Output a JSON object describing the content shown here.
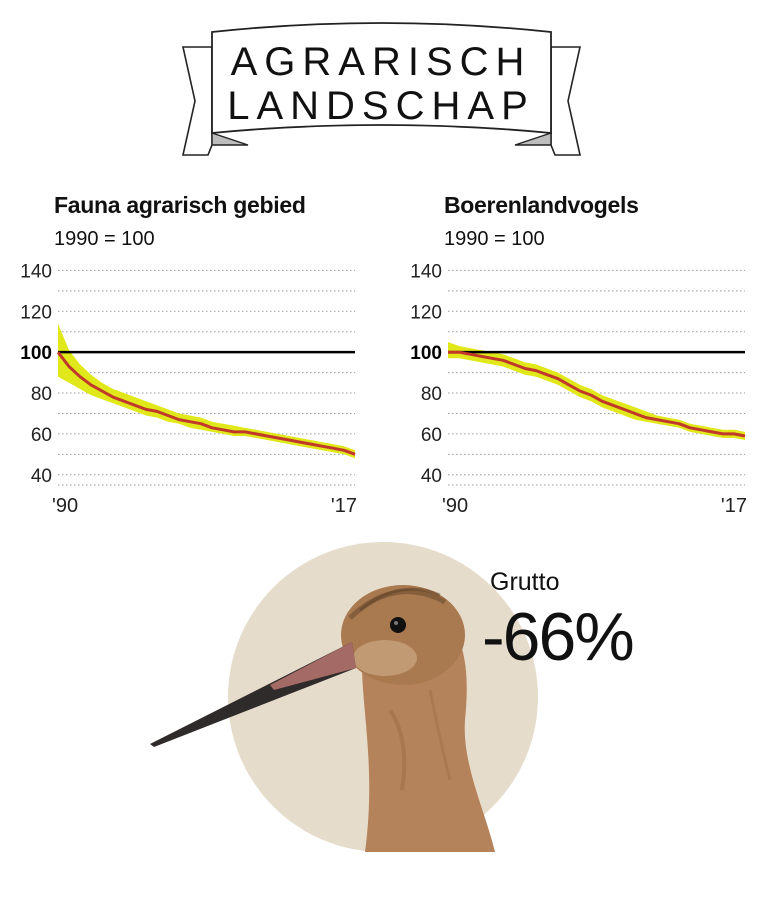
{
  "banner": {
    "line1": "AGRARISCH",
    "line2": "LANDSCHAP"
  },
  "colors": {
    "trend": "#c0392b",
    "band": "#e0e81a",
    "baseline": "#000000",
    "grid": "#9a9a9a",
    "circle": "#e6dccb"
  },
  "chart_data": [
    {
      "type": "line",
      "title": "Fauna agrarisch gebied",
      "subtitle": "1990 = 100",
      "ylim": [
        35,
        150
      ],
      "yticks": [
        40,
        60,
        80,
        100,
        120,
        140
      ],
      "baseline": 100,
      "grid": true,
      "xtick_labels": [
        "'90",
        "'17"
      ],
      "x": [
        1990,
        1991,
        1992,
        1993,
        1994,
        1995,
        1996,
        1997,
        1998,
        1999,
        2000,
        2001,
        2002,
        2003,
        2004,
        2005,
        2006,
        2007,
        2008,
        2009,
        2010,
        2011,
        2012,
        2013,
        2014,
        2015,
        2016,
        2017
      ],
      "series": [
        {
          "values": [
            100,
            93,
            88,
            84,
            81,
            78,
            76,
            74,
            72,
            71,
            69,
            67,
            66,
            65,
            63,
            62,
            61,
            61,
            60,
            59,
            58,
            57,
            56,
            55,
            54,
            53,
            52,
            50
          ],
          "lower": [
            88,
            85,
            82,
            79,
            77,
            75,
            73,
            71,
            69,
            68,
            66,
            65,
            63,
            62,
            61,
            60,
            59,
            59,
            58,
            57,
            56,
            55,
            54,
            53,
            52,
            51,
            50,
            48
          ],
          "upper": [
            114,
            101,
            94,
            89,
            85,
            82,
            80,
            78,
            76,
            74,
            72,
            70,
            69,
            68,
            66,
            65,
            64,
            63,
            62,
            61,
            60,
            59,
            58,
            57,
            56,
            55,
            54,
            52
          ]
        }
      ]
    },
    {
      "type": "line",
      "title": "Boerenlandvogels",
      "subtitle": "1990 = 100",
      "ylim": [
        35,
        150
      ],
      "yticks": [
        40,
        60,
        80,
        100,
        120,
        140
      ],
      "baseline": 100,
      "grid": true,
      "xtick_labels": [
        "'90",
        "'17"
      ],
      "x": [
        1990,
        1991,
        1992,
        1993,
        1994,
        1995,
        1996,
        1997,
        1998,
        1999,
        2000,
        2001,
        2002,
        2003,
        2004,
        2005,
        2006,
        2007,
        2008,
        2009,
        2010,
        2011,
        2012,
        2013,
        2014,
        2015,
        2016,
        2017
      ],
      "series": [
        {
          "values": [
            100,
            100,
            99,
            98,
            97,
            96,
            94,
            92,
            91,
            89,
            87,
            84,
            81,
            79,
            76,
            74,
            72,
            70,
            68,
            67,
            66,
            65,
            63,
            62,
            61,
            60,
            60,
            59
          ],
          "lower": [
            97,
            97,
            96,
            95,
            94,
            93,
            91,
            89,
            88,
            86,
            84,
            81,
            78,
            76,
            73,
            71,
            69,
            67,
            66,
            65,
            64,
            63,
            61,
            60,
            59,
            58,
            58,
            57
          ],
          "upper": [
            105,
            103,
            102,
            101,
            100,
            99,
            97,
            95,
            94,
            92,
            90,
            87,
            84,
            82,
            79,
            77,
            75,
            73,
            71,
            69,
            68,
            67,
            65,
            64,
            63,
            62,
            62,
            61
          ]
        }
      ]
    }
  ],
  "species": {
    "name": "Grutto",
    "change": "-66%"
  }
}
